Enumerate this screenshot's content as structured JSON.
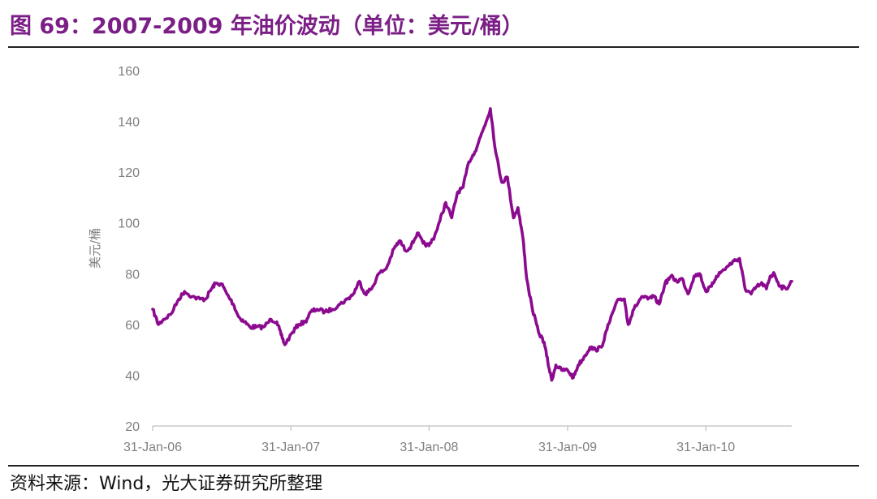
{
  "header": {
    "title": "图 69：2007-2009 年油价波动（单位：美元/桶）"
  },
  "footer": {
    "source": "资料来源：Wind，光大证券研究所整理"
  },
  "chart_data": {
    "type": "line",
    "ylabel": "美元/桶",
    "ylim": [
      20,
      160
    ],
    "yticks": [
      20,
      40,
      60,
      80,
      100,
      120,
      140,
      160
    ],
    "xlim": [
      "2006-01-31",
      "2010-09-15"
    ],
    "xticks": [
      {
        "date": "2006-01-31",
        "label": "31-Jan-06"
      },
      {
        "date": "2007-01-31",
        "label": "31-Jan-07"
      },
      {
        "date": "2008-01-31",
        "label": "31-Jan-08"
      },
      {
        "date": "2009-01-31",
        "label": "31-Jan-09"
      },
      {
        "date": "2010-01-31",
        "label": "31-Jan-10"
      }
    ],
    "grid": false,
    "legend": "none",
    "series": [
      {
        "color": "#8b0a8f",
        "points": [
          [
            "2006-01-31",
            66
          ],
          [
            "2006-02-15",
            60
          ],
          [
            "2006-03-01",
            62
          ],
          [
            "2006-03-20",
            64
          ],
          [
            "2006-04-10",
            70
          ],
          [
            "2006-04-25",
            73
          ],
          [
            "2006-05-15",
            71
          ],
          [
            "2006-06-05",
            70
          ],
          [
            "2006-06-20",
            70
          ],
          [
            "2006-07-05",
            74
          ],
          [
            "2006-07-15",
            76
          ],
          [
            "2006-08-01",
            76
          ],
          [
            "2006-08-15",
            72
          ],
          [
            "2006-09-01",
            68
          ],
          [
            "2006-09-15",
            63
          ],
          [
            "2006-10-01",
            61
          ],
          [
            "2006-10-15",
            59
          ],
          [
            "2006-11-01",
            59
          ],
          [
            "2006-11-20",
            59
          ],
          [
            "2006-12-10",
            62
          ],
          [
            "2006-12-25",
            61
          ],
          [
            "2007-01-05",
            56
          ],
          [
            "2007-01-15",
            52
          ],
          [
            "2007-02-05",
            57
          ],
          [
            "2007-02-20",
            60
          ],
          [
            "2007-03-10",
            61
          ],
          [
            "2007-03-25",
            65
          ],
          [
            "2007-04-10",
            66
          ],
          [
            "2007-05-01",
            65
          ],
          [
            "2007-05-20",
            66
          ],
          [
            "2007-06-10",
            68
          ],
          [
            "2007-06-30",
            70
          ],
          [
            "2007-07-15",
            72
          ],
          [
            "2007-07-31",
            77
          ],
          [
            "2007-08-15",
            72
          ],
          [
            "2007-09-01",
            74
          ],
          [
            "2007-09-20",
            80
          ],
          [
            "2007-10-10",
            82
          ],
          [
            "2007-10-31",
            90
          ],
          [
            "2007-11-15",
            93
          ],
          [
            "2007-11-30",
            89
          ],
          [
            "2007-12-15",
            91
          ],
          [
            "2007-12-31",
            96
          ],
          [
            "2008-01-15",
            92
          ],
          [
            "2008-01-31",
            91
          ],
          [
            "2008-02-15",
            95
          ],
          [
            "2008-02-29",
            101
          ],
          [
            "2008-03-15",
            108
          ],
          [
            "2008-03-31",
            102
          ],
          [
            "2008-04-15",
            112
          ],
          [
            "2008-04-30",
            114
          ],
          [
            "2008-05-15",
            124
          ],
          [
            "2008-05-31",
            128
          ],
          [
            "2008-06-15",
            134
          ],
          [
            "2008-06-30",
            140
          ],
          [
            "2008-07-11",
            145
          ],
          [
            "2008-07-25",
            128
          ],
          [
            "2008-08-10",
            116
          ],
          [
            "2008-08-25",
            118
          ],
          [
            "2008-09-10",
            102
          ],
          [
            "2008-09-22",
            106
          ],
          [
            "2008-10-05",
            94
          ],
          [
            "2008-10-15",
            78
          ],
          [
            "2008-10-30",
            66
          ],
          [
            "2008-11-15",
            57
          ],
          [
            "2008-11-30",
            53
          ],
          [
            "2008-12-10",
            45
          ],
          [
            "2008-12-20",
            38
          ],
          [
            "2008-12-31",
            44
          ],
          [
            "2009-01-15",
            42
          ],
          [
            "2009-01-31",
            42
          ],
          [
            "2009-02-15",
            39
          ],
          [
            "2009-02-28",
            44
          ],
          [
            "2009-03-15",
            47
          ],
          [
            "2009-03-31",
            51
          ],
          [
            "2009-04-15",
            50
          ],
          [
            "2009-04-30",
            51
          ],
          [
            "2009-05-15",
            58
          ],
          [
            "2009-05-31",
            65
          ],
          [
            "2009-06-15",
            70
          ],
          [
            "2009-06-30",
            70
          ],
          [
            "2009-07-10",
            60
          ],
          [
            "2009-07-25",
            66
          ],
          [
            "2009-08-15",
            71
          ],
          [
            "2009-08-31",
            70
          ],
          [
            "2009-09-15",
            71
          ],
          [
            "2009-09-30",
            68
          ],
          [
            "2009-10-15",
            76
          ],
          [
            "2009-10-31",
            79
          ],
          [
            "2009-11-15",
            77
          ],
          [
            "2009-11-30",
            78
          ],
          [
            "2009-12-15",
            72
          ],
          [
            "2009-12-31",
            79
          ],
          [
            "2010-01-15",
            80
          ],
          [
            "2010-01-31",
            73
          ],
          [
            "2010-02-15",
            75
          ],
          [
            "2010-02-28",
            79
          ],
          [
            "2010-03-15",
            81
          ],
          [
            "2010-03-31",
            83
          ],
          [
            "2010-04-15",
            85
          ],
          [
            "2010-04-30",
            86
          ],
          [
            "2010-05-05",
            82
          ],
          [
            "2010-05-15",
            74
          ],
          [
            "2010-05-31",
            72
          ],
          [
            "2010-06-15",
            75
          ],
          [
            "2010-06-30",
            76
          ],
          [
            "2010-07-10",
            74
          ],
          [
            "2010-07-20",
            79
          ],
          [
            "2010-07-31",
            80
          ],
          [
            "2010-08-15",
            75
          ],
          [
            "2010-08-31",
            74
          ],
          [
            "2010-09-15",
            77
          ]
        ]
      }
    ]
  }
}
